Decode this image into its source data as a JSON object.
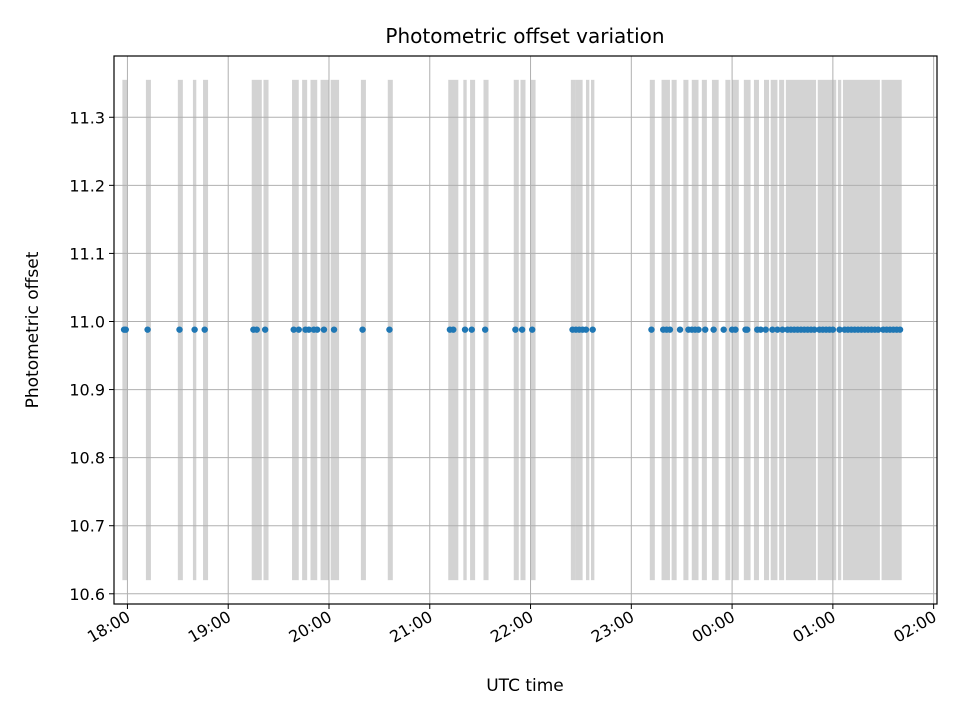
{
  "chart_data": {
    "type": "scatter",
    "title": "Photometric offset variation",
    "xlabel": "UTC time",
    "ylabel": "Photometric offset",
    "xlim": [
      "17:52",
      "02:02"
    ],
    "ylim": [
      10.585,
      11.39
    ],
    "grid": true,
    "x_tick_labels": [
      "18:00",
      "19:00",
      "20:00",
      "21:00",
      "22:00",
      "23:00",
      "00:00",
      "01:00",
      "02:00"
    ],
    "x_tick_minutes": [
      1080,
      1140,
      1200,
      1260,
      1320,
      1380,
      1440,
      1500,
      1560
    ],
    "y_ticks": [
      10.6,
      10.7,
      10.8,
      10.9,
      11.0,
      11.1,
      11.2,
      11.3
    ],
    "y_tick_labels": [
      "10.6",
      "10.7",
      "10.8",
      "10.9",
      "11.0",
      "11.1",
      "11.2",
      "11.3"
    ],
    "marker_color": "#1f77b4",
    "band_color": "#d3d3d3",
    "band_range": [
      10.62,
      11.355
    ],
    "bands": [
      [
        "17:57",
        "18:00"
      ],
      [
        "18:11",
        "18:14"
      ],
      [
        "18:30",
        "18:33"
      ],
      [
        "18:39",
        "18:41"
      ],
      [
        "18:45",
        "18:48"
      ],
      [
        "19:14",
        "19:20"
      ],
      [
        "19:21",
        "19:24"
      ],
      [
        "19:38",
        "19:42"
      ],
      [
        "19:44",
        "19:47"
      ],
      [
        "19:49",
        "19:53"
      ],
      [
        "19:55",
        "20:00"
      ],
      [
        "20:01",
        "20:06"
      ],
      [
        "20:19",
        "20:22"
      ],
      [
        "20:35",
        "20:38"
      ],
      [
        "21:11",
        "21:17"
      ],
      [
        "21:20",
        "21:22"
      ],
      [
        "21:24",
        "21:27"
      ],
      [
        "21:32",
        "21:35"
      ],
      [
        "21:50",
        "21:53"
      ],
      [
        "21:54",
        "21:57"
      ],
      [
        "22:00",
        "22:03"
      ],
      [
        "22:24",
        "22:27"
      ],
      [
        "22:27",
        "22:31"
      ],
      [
        "22:33",
        "22:35"
      ],
      [
        "22:36",
        "22:38"
      ],
      [
        "23:11",
        "23:14"
      ],
      [
        "23:18",
        "23:23"
      ],
      [
        "23:24",
        "23:27"
      ],
      [
        "23:31",
        "23:34"
      ],
      [
        "23:36",
        "23:40"
      ],
      [
        "23:42",
        "23:45"
      ],
      [
        "23:48",
        "23:52"
      ],
      [
        "23:56",
        "23:59"
      ],
      [
        "00:00",
        "00:04"
      ],
      [
        "00:07",
        "00:11"
      ],
      [
        "00:13",
        "00:16"
      ],
      [
        "00:19",
        "00:22"
      ],
      [
        "00:23",
        "00:27"
      ],
      [
        "00:28",
        "00:31"
      ],
      [
        "00:32",
        "00:50"
      ],
      [
        "00:51",
        "01:02"
      ],
      [
        "01:03",
        "01:05"
      ],
      [
        "01:06",
        "01:28"
      ],
      [
        "01:29",
        "01:41"
      ]
    ],
    "points": [
      {
        "x": "17:58",
        "y": 10.988
      },
      {
        "x": "17:59",
        "y": 10.988
      },
      {
        "x": "18:12",
        "y": 10.988
      },
      {
        "x": "18:31",
        "y": 10.988
      },
      {
        "x": "18:40",
        "y": 10.988
      },
      {
        "x": "18:46",
        "y": 10.988
      },
      {
        "x": "19:15",
        "y": 10.988
      },
      {
        "x": "19:17",
        "y": 10.988
      },
      {
        "x": "19:22",
        "y": 10.988
      },
      {
        "x": "19:39",
        "y": 10.988
      },
      {
        "x": "19:42",
        "y": 10.988
      },
      {
        "x": "19:46",
        "y": 10.988
      },
      {
        "x": "19:48",
        "y": 10.988
      },
      {
        "x": "19:51",
        "y": 10.988
      },
      {
        "x": "19:53",
        "y": 10.988
      },
      {
        "x": "19:57",
        "y": 10.988
      },
      {
        "x": "20:03",
        "y": 10.988
      },
      {
        "x": "20:20",
        "y": 10.988
      },
      {
        "x": "20:36",
        "y": 10.988
      },
      {
        "x": "21:12",
        "y": 10.988
      },
      {
        "x": "21:14",
        "y": 10.988
      },
      {
        "x": "21:21",
        "y": 10.988
      },
      {
        "x": "21:25",
        "y": 10.988
      },
      {
        "x": "21:33",
        "y": 10.988
      },
      {
        "x": "21:51",
        "y": 10.988
      },
      {
        "x": "21:55",
        "y": 10.988
      },
      {
        "x": "22:01",
        "y": 10.988
      },
      {
        "x": "22:25",
        "y": 10.988
      },
      {
        "x": "22:27",
        "y": 10.988
      },
      {
        "x": "22:29",
        "y": 10.988
      },
      {
        "x": "22:31",
        "y": 10.988
      },
      {
        "x": "22:33",
        "y": 10.988
      },
      {
        "x": "22:37",
        "y": 10.988
      },
      {
        "x": "23:12",
        "y": 10.988
      },
      {
        "x": "23:19",
        "y": 10.988
      },
      {
        "x": "23:21",
        "y": 10.988
      },
      {
        "x": "23:23",
        "y": 10.988
      },
      {
        "x": "23:29",
        "y": 10.988
      },
      {
        "x": "23:34",
        "y": 10.988
      },
      {
        "x": "23:36",
        "y": 10.988
      },
      {
        "x": "23:38",
        "y": 10.988
      },
      {
        "x": "23:40",
        "y": 10.988
      },
      {
        "x": "23:44",
        "y": 10.988
      },
      {
        "x": "23:49",
        "y": 10.988
      },
      {
        "x": "23:55",
        "y": 10.988
      },
      {
        "x": "00:00",
        "y": 10.988
      },
      {
        "x": "00:02",
        "y": 10.988
      },
      {
        "x": "00:08",
        "y": 10.988
      },
      {
        "x": "00:09",
        "y": 10.988
      },
      {
        "x": "00:15",
        "y": 10.988
      },
      {
        "x": "00:17",
        "y": 10.988
      },
      {
        "x": "00:20",
        "y": 10.988
      },
      {
        "x": "00:24",
        "y": 10.988
      },
      {
        "x": "00:27",
        "y": 10.988
      },
      {
        "x": "00:30",
        "y": 10.988
      },
      {
        "x": "00:33",
        "y": 10.988
      },
      {
        "x": "00:35",
        "y": 10.988
      },
      {
        "x": "00:37",
        "y": 10.988
      },
      {
        "x": "00:39",
        "y": 10.988
      },
      {
        "x": "00:41",
        "y": 10.988
      },
      {
        "x": "00:43",
        "y": 10.988
      },
      {
        "x": "00:45",
        "y": 10.988
      },
      {
        "x": "00:47",
        "y": 10.988
      },
      {
        "x": "00:49",
        "y": 10.988
      },
      {
        "x": "00:52",
        "y": 10.988
      },
      {
        "x": "00:54",
        "y": 10.988
      },
      {
        "x": "00:56",
        "y": 10.988
      },
      {
        "x": "00:58",
        "y": 10.988
      },
      {
        "x": "01:00",
        "y": 10.988
      },
      {
        "x": "01:04",
        "y": 10.988
      },
      {
        "x": "01:07",
        "y": 10.988
      },
      {
        "x": "01:09",
        "y": 10.988
      },
      {
        "x": "01:11",
        "y": 10.988
      },
      {
        "x": "01:13",
        "y": 10.988
      },
      {
        "x": "01:15",
        "y": 10.988
      },
      {
        "x": "01:17",
        "y": 10.988
      },
      {
        "x": "01:19",
        "y": 10.988
      },
      {
        "x": "01:21",
        "y": 10.988
      },
      {
        "x": "01:23",
        "y": 10.988
      },
      {
        "x": "01:25",
        "y": 10.988
      },
      {
        "x": "01:27",
        "y": 10.988
      },
      {
        "x": "01:30",
        "y": 10.988
      },
      {
        "x": "01:32",
        "y": 10.988
      },
      {
        "x": "01:34",
        "y": 10.988
      },
      {
        "x": "01:36",
        "y": 10.988
      },
      {
        "x": "01:38",
        "y": 10.988
      },
      {
        "x": "01:40",
        "y": 10.988
      }
    ]
  }
}
